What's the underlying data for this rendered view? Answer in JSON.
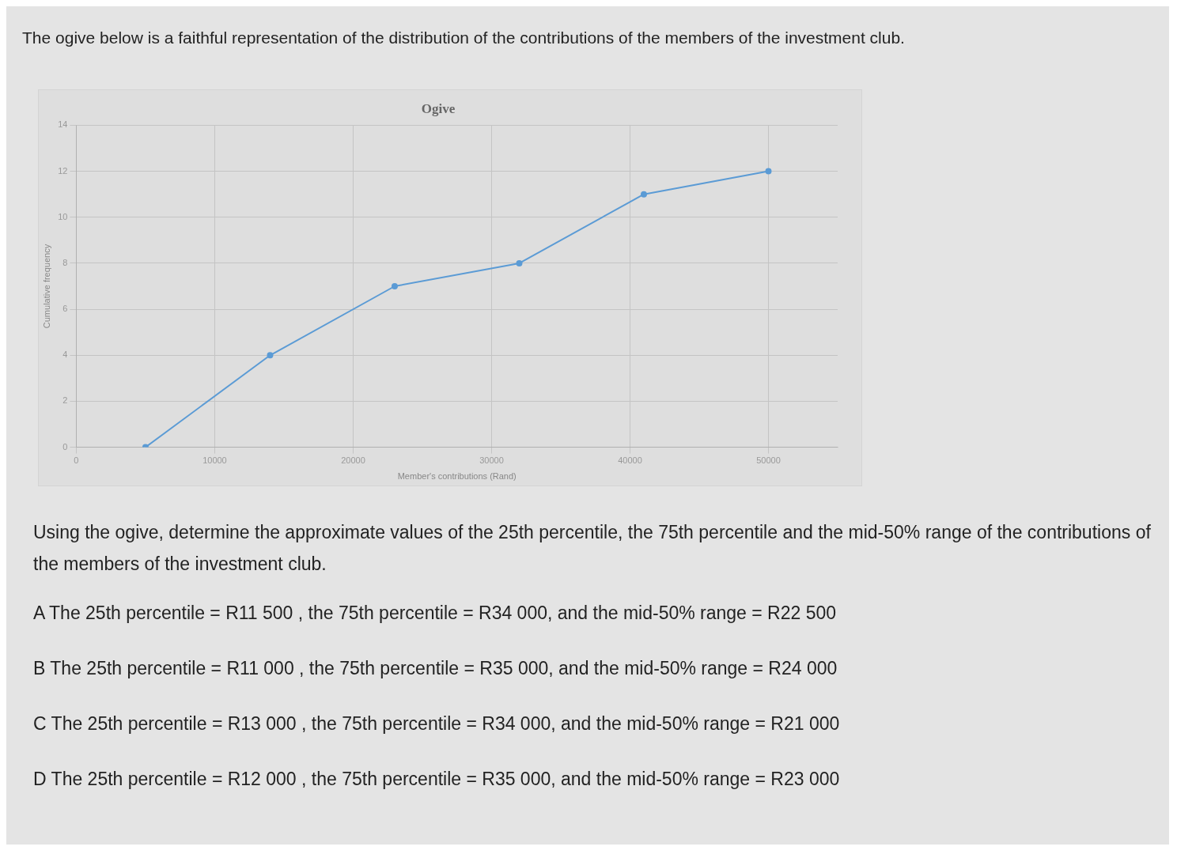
{
  "chart_data": {
    "type": "line",
    "subtitle": "The ogive below is a faithful representation of the distribution of the contributions of the members of the investment club.",
    "title": "Ogive",
    "xlabel": "Member's contributions (Rand)",
    "ylabel": "Cumulative frequency",
    "x": [
      5000,
      14000,
      23000,
      32000,
      41000,
      50000
    ],
    "series": [
      {
        "color": "#5b9bd5",
        "values": [
          0,
          4,
          7,
          8,
          11,
          12
        ]
      }
    ],
    "xlim": [
      0,
      55000
    ],
    "xticks": [
      0,
      10000,
      20000,
      30000,
      40000,
      50000
    ],
    "ylim": [
      0,
      14
    ],
    "yticks": [
      0,
      2,
      4,
      6,
      8,
      10,
      12,
      14
    ],
    "grid": true,
    "marker": "circle",
    "line_style": "solid",
    "legend": false,
    "annotations": [
      "Using the ogive, determine the approximate values of the 25th percentile, the 75th percentile and the mid-50% range of the contributions of the members of the investment club.",
      "A  The 25th percentile = R11 500 , the 75th percentile = R34 000, and the mid-50% range = R22 500",
      "B  The 25th percentile = R11 000 , the 75th percentile = R35 000, and the mid-50% range = R24 000",
      "C  The 25th percentile = R13 000 , the 75th percentile = R34 000, and the mid-50% range = R21 000",
      "D  The 25th percentile = R12 000 , the 75th percentile = R35 000, and the mid-50% range = R23 000"
    ]
  }
}
